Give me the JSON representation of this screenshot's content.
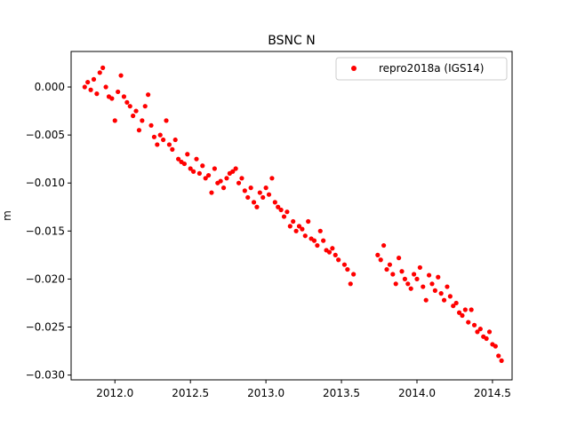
{
  "chart_data": {
    "type": "scatter",
    "title": "BSNC N",
    "xlabel": "",
    "ylabel": "m",
    "xlim": [
      2011.71,
      2014.63
    ],
    "ylim": [
      -0.0305,
      0.0037
    ],
    "xticks": [
      2012.0,
      2012.5,
      2013.0,
      2013.5,
      2014.0,
      2014.5
    ],
    "xtick_labels": [
      "2012.0",
      "2012.5",
      "2013.0",
      "2013.5",
      "2014.0",
      "2014.5"
    ],
    "yticks": [
      0.0,
      -0.005,
      -0.01,
      -0.015,
      -0.02,
      -0.025,
      -0.03
    ],
    "ytick_labels": [
      "0.000",
      "−0.005",
      "−0.010",
      "−0.015",
      "−0.020",
      "−0.025",
      "−0.030"
    ],
    "grid": false,
    "legend_position": "top-right",
    "series": [
      {
        "name": "repro2018a (IGS14)",
        "color": "#ff0000",
        "marker": "circle",
        "points": [
          [
            2011.8,
            0.0
          ],
          [
            2011.82,
            0.0005
          ],
          [
            2011.84,
            -0.0003
          ],
          [
            2011.86,
            0.0008
          ],
          [
            2011.88,
            -0.0007
          ],
          [
            2011.9,
            0.0015
          ],
          [
            2011.92,
            0.002
          ],
          [
            2011.94,
            0.0
          ],
          [
            2011.96,
            -0.001
          ],
          [
            2011.98,
            -0.0012
          ],
          [
            2012.0,
            -0.0035
          ],
          [
            2012.02,
            -0.0005
          ],
          [
            2012.04,
            0.0012
          ],
          [
            2012.06,
            -0.001
          ],
          [
            2012.08,
            -0.0016
          ],
          [
            2012.1,
            -0.002
          ],
          [
            2012.12,
            -0.003
          ],
          [
            2012.14,
            -0.0025
          ],
          [
            2012.16,
            -0.0045
          ],
          [
            2012.18,
            -0.0035
          ],
          [
            2012.2,
            -0.002
          ],
          [
            2012.22,
            -0.0008
          ],
          [
            2012.24,
            -0.004
          ],
          [
            2012.26,
            -0.0052
          ],
          [
            2012.28,
            -0.006
          ],
          [
            2012.3,
            -0.005
          ],
          [
            2012.32,
            -0.0055
          ],
          [
            2012.34,
            -0.0035
          ],
          [
            2012.36,
            -0.006
          ],
          [
            2012.38,
            -0.0065
          ],
          [
            2012.4,
            -0.0055
          ],
          [
            2012.42,
            -0.0075
          ],
          [
            2012.44,
            -0.0078
          ],
          [
            2012.46,
            -0.008
          ],
          [
            2012.48,
            -0.007
          ],
          [
            2012.5,
            -0.0085
          ],
          [
            2012.52,
            -0.0088
          ],
          [
            2012.54,
            -0.0075
          ],
          [
            2012.56,
            -0.009
          ],
          [
            2012.58,
            -0.0082
          ],
          [
            2012.6,
            -0.0095
          ],
          [
            2012.62,
            -0.0092
          ],
          [
            2012.64,
            -0.011
          ],
          [
            2012.66,
            -0.0085
          ],
          [
            2012.68,
            -0.01
          ],
          [
            2012.7,
            -0.0098
          ],
          [
            2012.72,
            -0.0105
          ],
          [
            2012.74,
            -0.0095
          ],
          [
            2012.76,
            -0.009
          ],
          [
            2012.78,
            -0.0088
          ],
          [
            2012.8,
            -0.0085
          ],
          [
            2012.82,
            -0.01
          ],
          [
            2012.84,
            -0.0095
          ],
          [
            2012.86,
            -0.0108
          ],
          [
            2012.88,
            -0.0115
          ],
          [
            2012.9,
            -0.0105
          ],
          [
            2012.92,
            -0.012
          ],
          [
            2012.94,
            -0.0125
          ],
          [
            2012.96,
            -0.011
          ],
          [
            2012.98,
            -0.0115
          ],
          [
            2013.0,
            -0.0105
          ],
          [
            2013.02,
            -0.0112
          ],
          [
            2013.04,
            -0.0095
          ],
          [
            2013.06,
            -0.012
          ],
          [
            2013.08,
            -0.0125
          ],
          [
            2013.1,
            -0.0128
          ],
          [
            2013.12,
            -0.0135
          ],
          [
            2013.14,
            -0.013
          ],
          [
            2013.16,
            -0.0145
          ],
          [
            2013.18,
            -0.014
          ],
          [
            2013.2,
            -0.015
          ],
          [
            2013.22,
            -0.0145
          ],
          [
            2013.24,
            -0.0148
          ],
          [
            2013.26,
            -0.0155
          ],
          [
            2013.28,
            -0.014
          ],
          [
            2013.3,
            -0.0158
          ],
          [
            2013.32,
            -0.016
          ],
          [
            2013.34,
            -0.0165
          ],
          [
            2013.36,
            -0.015
          ],
          [
            2013.38,
            -0.016
          ],
          [
            2013.4,
            -0.017
          ],
          [
            2013.42,
            -0.0172
          ],
          [
            2013.44,
            -0.0168
          ],
          [
            2013.46,
            -0.0175
          ],
          [
            2013.48,
            -0.018
          ],
          [
            2013.52,
            -0.0185
          ],
          [
            2013.54,
            -0.019
          ],
          [
            2013.56,
            -0.0205
          ],
          [
            2013.58,
            -0.0195
          ],
          [
            2013.74,
            -0.0175
          ],
          [
            2013.76,
            -0.018
          ],
          [
            2013.78,
            -0.0165
          ],
          [
            2013.8,
            -0.019
          ],
          [
            2013.82,
            -0.0185
          ],
          [
            2013.84,
            -0.0195
          ],
          [
            2013.86,
            -0.0205
          ],
          [
            2013.88,
            -0.0178
          ],
          [
            2013.9,
            -0.0192
          ],
          [
            2013.92,
            -0.02
          ],
          [
            2013.94,
            -0.0205
          ],
          [
            2013.96,
            -0.021
          ],
          [
            2013.98,
            -0.0195
          ],
          [
            2014.0,
            -0.02
          ],
          [
            2014.02,
            -0.0188
          ],
          [
            2014.04,
            -0.0208
          ],
          [
            2014.06,
            -0.0222
          ],
          [
            2014.08,
            -0.0196
          ],
          [
            2014.1,
            -0.0205
          ],
          [
            2014.12,
            -0.0212
          ],
          [
            2014.14,
            -0.0198
          ],
          [
            2014.16,
            -0.0215
          ],
          [
            2014.18,
            -0.0222
          ],
          [
            2014.2,
            -0.0208
          ],
          [
            2014.22,
            -0.0218
          ],
          [
            2014.24,
            -0.0228
          ],
          [
            2014.26,
            -0.0225
          ],
          [
            2014.28,
            -0.0235
          ],
          [
            2014.3,
            -0.0238
          ],
          [
            2014.32,
            -0.0232
          ],
          [
            2014.34,
            -0.0245
          ],
          [
            2014.36,
            -0.0232
          ],
          [
            2014.38,
            -0.0248
          ],
          [
            2014.4,
            -0.0255
          ],
          [
            2014.42,
            -0.0252
          ],
          [
            2014.44,
            -0.026
          ],
          [
            2014.46,
            -0.0262
          ],
          [
            2014.48,
            -0.0255
          ],
          [
            2014.5,
            -0.0268
          ],
          [
            2014.52,
            -0.027
          ],
          [
            2014.54,
            -0.028
          ],
          [
            2014.56,
            -0.0285
          ]
        ]
      }
    ]
  }
}
